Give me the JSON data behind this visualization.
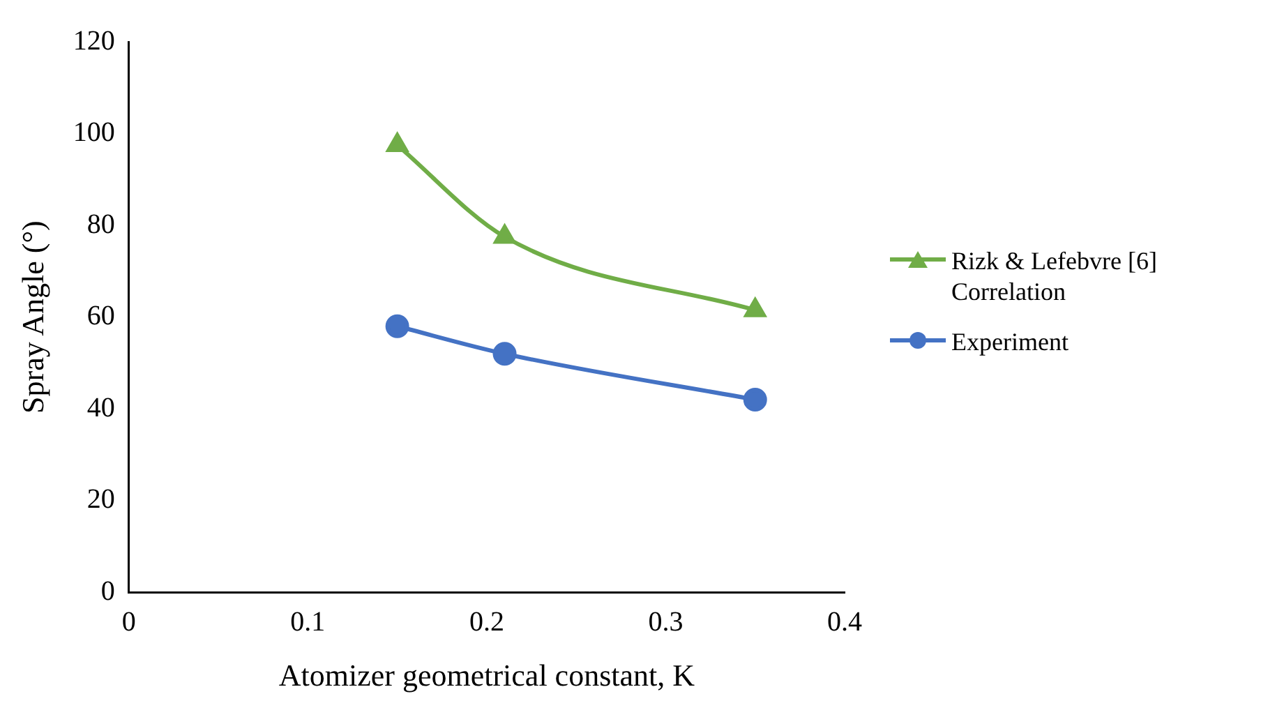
{
  "chart_data": {
    "type": "line",
    "xlabel": "Atomizer geometrical constant, K",
    "ylabel": "Spray Angle (°)",
    "x": [
      0.15,
      0.21,
      0.35
    ],
    "series": [
      {
        "name": "Rizk & Lefebvre [6] Correlation",
        "color": "#70ad47",
        "marker": "triangle",
        "values": [
          97.5,
          77.5,
          61.5
        ]
      },
      {
        "name": "Experiment",
        "color": "#4472c4",
        "marker": "circle",
        "values": [
          58,
          52,
          42
        ]
      }
    ],
    "xlim": [
      0,
      0.4
    ],
    "xticks": [
      0,
      0.1,
      0.2,
      0.3,
      0.4
    ],
    "ylim": [
      0,
      120
    ],
    "yticks": [
      0,
      20,
      40,
      60,
      80,
      100,
      120
    ],
    "grid": false,
    "legend": "right",
    "line_style": "solid"
  }
}
